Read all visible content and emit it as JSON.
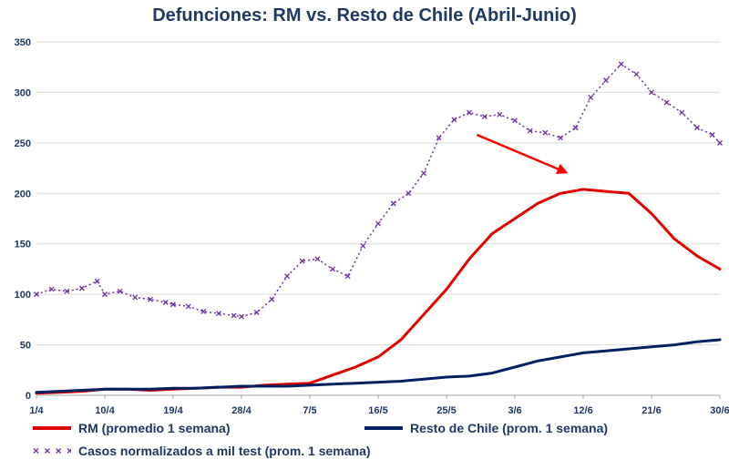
{
  "chart_data": {
    "type": "line",
    "title": "Defunciones: RM vs. Resto de Chile (Abril-Junio)",
    "xlabel": "",
    "ylabel": "",
    "ylim": [
      0,
      350
    ],
    "yticks": [
      "0",
      "50",
      "100",
      "150",
      "200",
      "250",
      "300",
      "350"
    ],
    "xtick_labels": [
      "1/4",
      "10/4",
      "19/4",
      "28/4",
      "7/5",
      "16/5",
      "25/5",
      "3/6",
      "12/6",
      "21/6",
      "30/6"
    ],
    "x_start": "2020-04-01",
    "x_end": "2020-06-30",
    "grid": true,
    "legend_position": "bottom",
    "annotation": "red arrow pointing down from ~29/5 to ~10/6",
    "series": [
      {
        "name": "RM (promedio 1 semana)",
        "color": "#E00000",
        "style": "solid",
        "dates": [
          "1/4",
          "4/4",
          "7/4",
          "10/4",
          "13/4",
          "16/4",
          "19/4",
          "22/4",
          "25/4",
          "28/4",
          "1/5",
          "4/5",
          "7/5",
          "10/5",
          "13/5",
          "16/5",
          "19/5",
          "22/5",
          "25/5",
          "28/5",
          "31/5",
          "3/6",
          "6/6",
          "9/6",
          "12/6",
          "15/6",
          "18/6",
          "21/6",
          "24/6",
          "27/6",
          "30/6"
        ],
        "values": [
          2,
          3,
          4,
          6,
          6,
          5,
          6,
          7,
          8,
          8,
          10,
          11,
          12,
          20,
          28,
          38,
          55,
          80,
          105,
          135,
          160,
          175,
          190,
          200,
          204,
          202,
          200,
          180,
          155,
          138,
          125
        ]
      },
      {
        "name": "Resto de Chile (prom. 1 semana)",
        "color": "#002060",
        "style": "solid",
        "dates": [
          "1/4",
          "4/4",
          "7/4",
          "10/4",
          "13/4",
          "16/4",
          "19/4",
          "22/4",
          "25/4",
          "28/4",
          "1/5",
          "4/5",
          "7/5",
          "10/5",
          "13/5",
          "16/5",
          "19/5",
          "22/5",
          "25/5",
          "28/5",
          "31/5",
          "3/6",
          "6/6",
          "9/6",
          "12/6",
          "15/6",
          "18/6",
          "21/6",
          "24/6",
          "27/6",
          "30/6"
        ],
        "values": [
          3,
          4,
          5,
          6,
          6,
          6,
          7,
          7,
          8,
          9,
          9,
          9,
          10,
          11,
          12,
          13,
          14,
          16,
          18,
          19,
          22,
          28,
          34,
          38,
          42,
          44,
          46,
          48,
          50,
          53,
          55
        ]
      },
      {
        "name": "Casos normalizados a mil test (prom. 1 semana)",
        "color": "#7030A0",
        "style": "dotted-x",
        "dates": [
          "1/4",
          "3/4",
          "5/4",
          "7/4",
          "9/4",
          "10/4",
          "12/4",
          "14/4",
          "16/4",
          "18/4",
          "19/4",
          "21/4",
          "23/4",
          "25/4",
          "27/4",
          "28/4",
          "30/4",
          "2/5",
          "4/5",
          "6/5",
          "8/5",
          "10/5",
          "12/5",
          "14/5",
          "16/5",
          "18/5",
          "20/5",
          "22/5",
          "24/5",
          "26/5",
          "28/5",
          "30/5",
          "1/6",
          "3/6",
          "5/6",
          "7/6",
          "9/6",
          "11/6",
          "13/6",
          "15/6",
          "17/6",
          "19/6",
          "21/6",
          "23/6",
          "25/6",
          "27/6",
          "29/6",
          "30/6"
        ],
        "values": [
          100,
          105,
          103,
          106,
          113,
          100,
          103,
          97,
          95,
          92,
          90,
          88,
          83,
          81,
          79,
          78,
          82,
          95,
          118,
          133,
          135,
          125,
          118,
          148,
          170,
          190,
          200,
          220,
          255,
          273,
          280,
          276,
          278,
          272,
          262,
          260,
          255,
          265,
          295,
          312,
          328,
          318,
          300,
          290,
          280,
          265,
          258,
          250
        ]
      }
    ]
  }
}
